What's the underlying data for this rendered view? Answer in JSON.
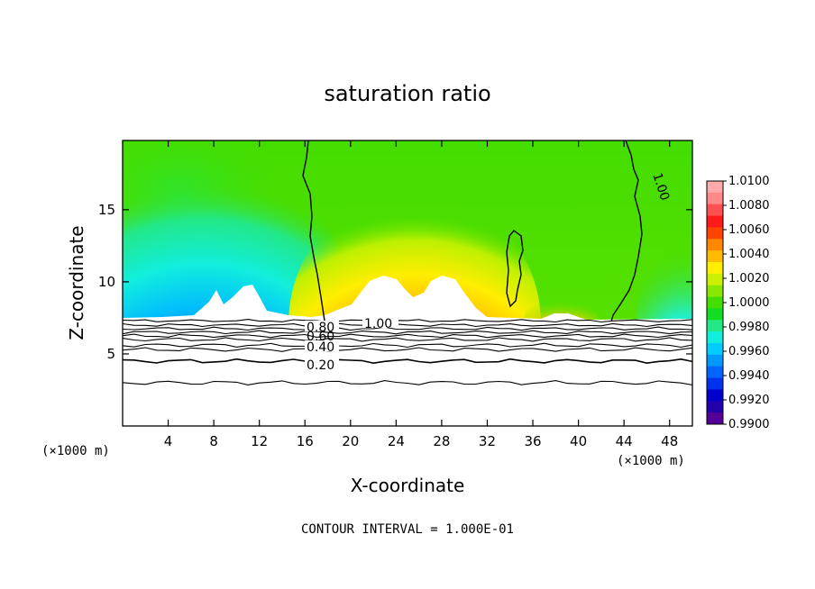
{
  "chart_data": {
    "type": "heatmap",
    "title": "saturation ratio",
    "xlabel": "X-coordinate",
    "ylabel": "Z-coordinate",
    "x_unit": "(×1000 m)",
    "y_unit": "(×1000 m)",
    "xlim": [
      0,
      50
    ],
    "ylim": [
      0,
      19.8
    ],
    "x_ticks": [
      "4",
      "8",
      "12",
      "16",
      "20",
      "24",
      "28",
      "32",
      "36",
      "40",
      "44",
      "48"
    ],
    "y_ticks": [
      "5",
      "10",
      "15"
    ],
    "colorbar": {
      "labels": [
        "1.0100",
        "1.0080",
        "1.0060",
        "1.0040",
        "1.0020",
        "1.0000",
        "0.9980",
        "0.9960",
        "0.9940",
        "0.9920",
        "0.9900"
      ],
      "colors": [
        "#ffaaaa",
        "#ff8888",
        "#ff5050",
        "#ff1a1a",
        "#ff4400",
        "#ff8800",
        "#ffbb00",
        "#ffee00",
        "#ccf000",
        "#88e800",
        "#44dd00",
        "#11dd22",
        "#22e888",
        "#11eedd",
        "#00ccff",
        "#0099ff",
        "#0066ff",
        "#0033ee",
        "#0000cc",
        "#2200aa",
        "#550099"
      ]
    },
    "contour_interval_text": "CONTOUR INTERVAL = 1.000E-01",
    "contour_labels": [
      "0.80",
      "0.60",
      "0.40",
      "0.20",
      "1.00",
      "1.00"
    ],
    "plot_background": "#2ee000"
  }
}
